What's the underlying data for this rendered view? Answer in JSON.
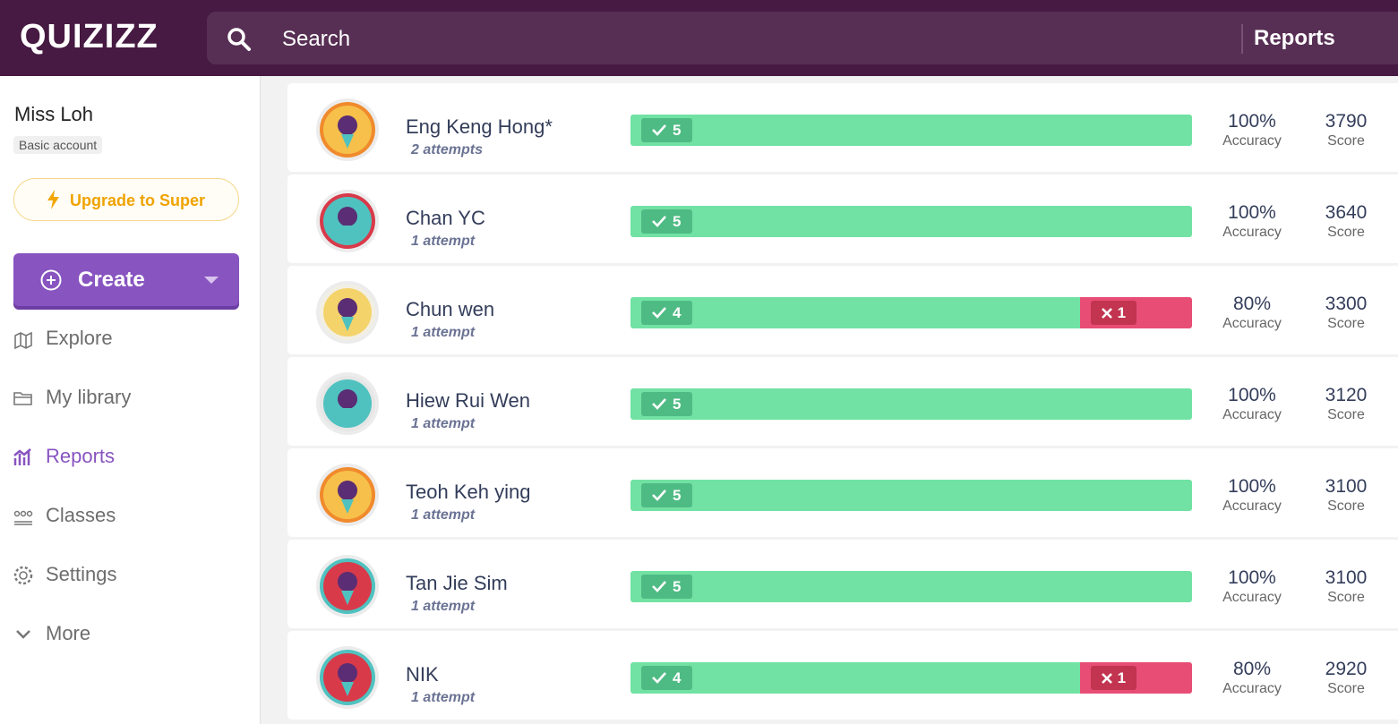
{
  "header": {
    "logo": "QUIZIZZ",
    "search": "Search",
    "section": "Reports"
  },
  "sidebar": {
    "user": "Miss Loh",
    "account": "Basic account",
    "upgrade": "Upgrade to Super",
    "create": "Create",
    "nav": [
      "Explore",
      "My library",
      "Reports",
      "Classes",
      "Settings",
      "More"
    ]
  },
  "labels": {
    "accuracy": "Accuracy",
    "score": "Score"
  },
  "rows": [
    {
      "name": "Eng Keng Hong*",
      "attempts": "2 attempts",
      "correct": 5,
      "accuracy": "100%",
      "score": "3790"
    },
    {
      "name": "Chan YC",
      "attempts": "1 attempt",
      "correct": 5,
      "accuracy": "100%",
      "score": "3640"
    },
    {
      "name": "Chun wen",
      "attempts": "1 attempt",
      "correct": 4,
      "incorrect": 1,
      "accuracy": "80%",
      "score": "3300"
    },
    {
      "name": "Hiew Rui Wen",
      "attempts": "1 attempt",
      "correct": 5,
      "accuracy": "100%",
      "score": "3120"
    },
    {
      "name": "Teoh Keh ying",
      "attempts": "1 attempt",
      "correct": 5,
      "accuracy": "100%",
      "score": "3100"
    },
    {
      "name": "Tan Jie Sim",
      "attempts": "1 attempt",
      "correct": 5,
      "accuracy": "100%",
      "score": "3100"
    },
    {
      "name": "NIK",
      "attempts": "1 attempt",
      "correct": 4,
      "incorrect": 1,
      "accuracy": "80%",
      "score": "2920"
    }
  ]
}
